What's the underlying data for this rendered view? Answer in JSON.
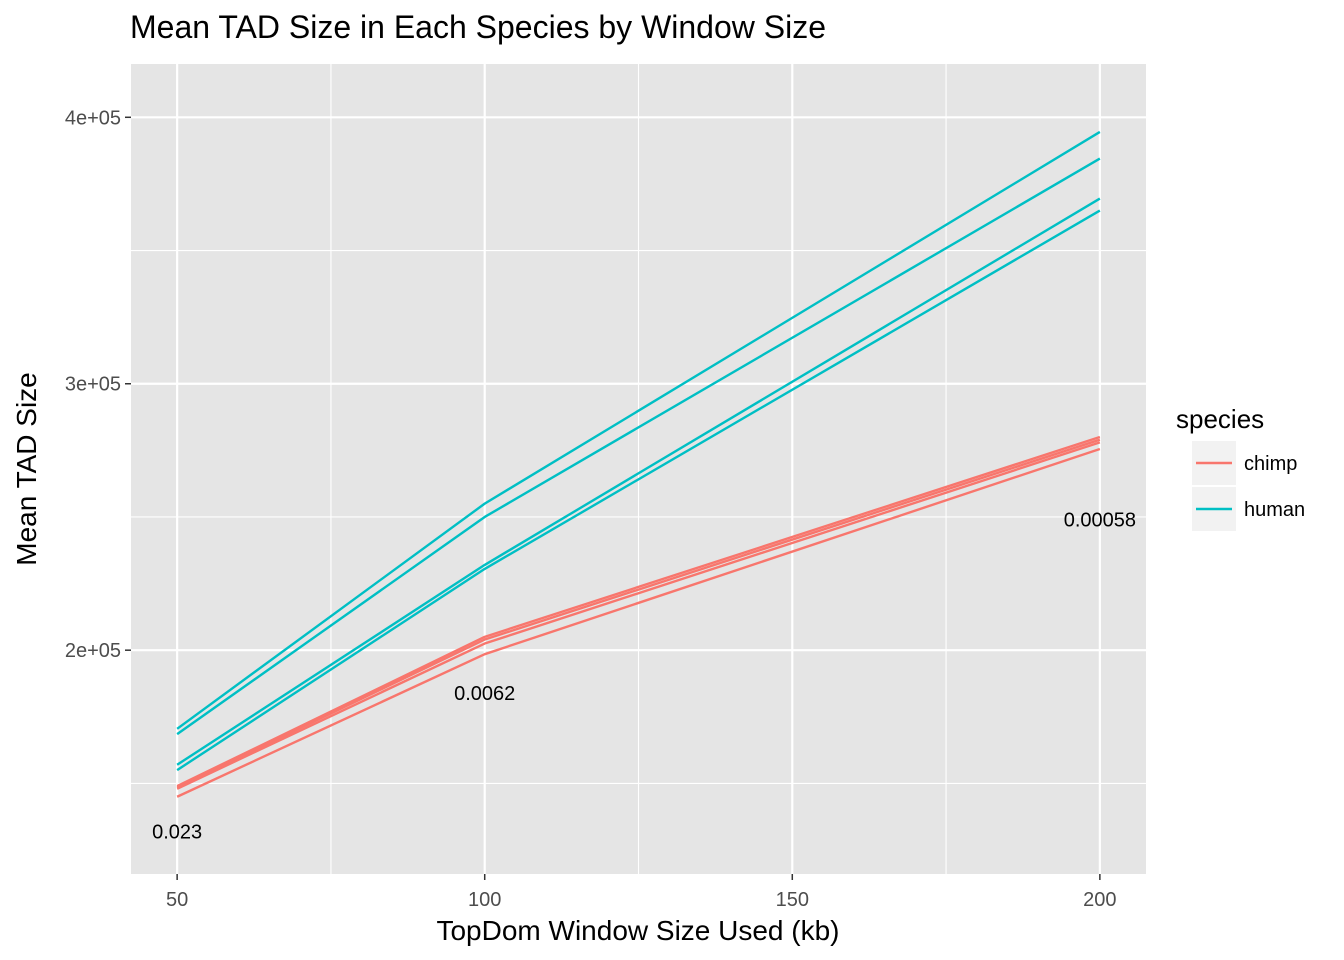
{
  "chart_data": {
    "type": "line",
    "title": "Mean TAD Size in Each Species by Window Size",
    "xlabel": "TopDom Window Size Used (kb)",
    "ylabel": "Mean TAD Size",
    "x": [
      50,
      100,
      200
    ],
    "x_ticks": [
      50,
      100,
      150,
      200
    ],
    "x_tick_labels": [
      "50",
      "100",
      "150",
      "200"
    ],
    "y_ticks": [
      200000,
      300000,
      400000
    ],
    "y_tick_labels": [
      "2e+05",
      "3e+05",
      "4e+05"
    ],
    "xlim": [
      42.5,
      207.5
    ],
    "ylim": [
      116000,
      420000
    ],
    "grid": true,
    "legend": {
      "title": "species",
      "position": "right",
      "entries": [
        {
          "label": "chimp",
          "color": "#F8766D"
        },
        {
          "label": "human",
          "color": "#00BFC4"
        }
      ]
    },
    "colors": {
      "chimp": "#F8766D",
      "human": "#00BFC4",
      "panel": "#E5E5E5",
      "grid": "#FFFFFF"
    },
    "series": [
      {
        "species": "human",
        "values": [
          170500,
          255000,
          394500
        ]
      },
      {
        "species": "human",
        "values": [
          168500,
          250000,
          384500
        ]
      },
      {
        "species": "human",
        "values": [
          157000,
          232000,
          369500
        ]
      },
      {
        "species": "human",
        "values": [
          155000,
          230500,
          365000
        ]
      },
      {
        "species": "chimp",
        "values": [
          149000,
          205000,
          280000
        ]
      },
      {
        "species": "chimp",
        "values": [
          148500,
          204000,
          279000
        ]
      },
      {
        "species": "chimp",
        "values": [
          148000,
          202500,
          278000
        ]
      },
      {
        "species": "chimp",
        "values": [
          145000,
          198500,
          275500
        ]
      }
    ],
    "annotations": [
      {
        "text": "0.023",
        "x": 50,
        "y": 132000
      },
      {
        "text": "0.0062",
        "x": 100,
        "y": 184000
      },
      {
        "text": "0.00058",
        "x": 200,
        "y": 249000
      }
    ]
  }
}
